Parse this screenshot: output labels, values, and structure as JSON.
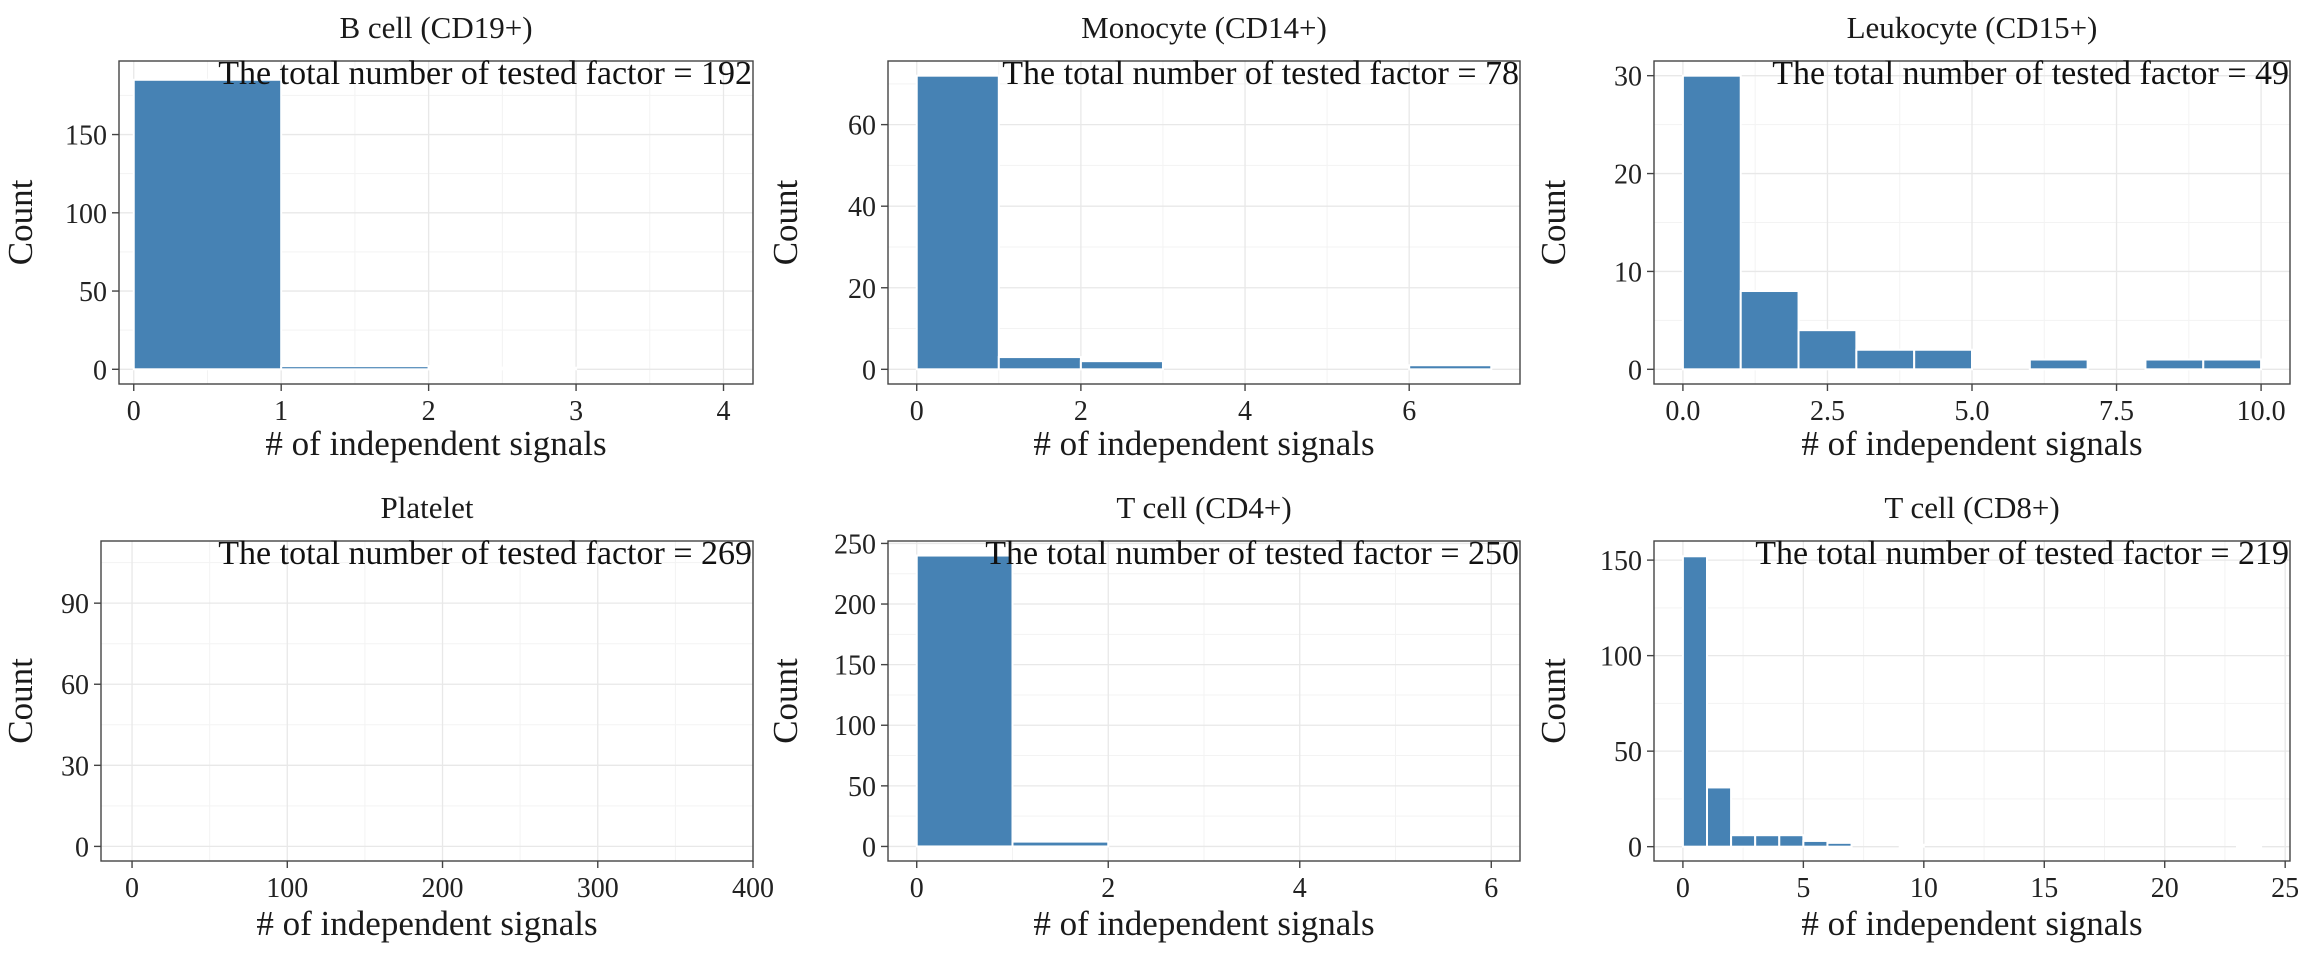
{
  "bar_color": "#4682b4",
  "chart_data": [
    {
      "type": "bar",
      "title": "B cell (CD19+)",
      "xlabel": "# of independent signals",
      "ylabel": "Count",
      "annotation": "The total number of tested factor = 192",
      "xlim": [
        -0.1,
        4.2
      ],
      "ylim": [
        -9.4,
        197
      ],
      "xticks": [
        0,
        1,
        2,
        3,
        4
      ],
      "xtick_labels": [
        "0",
        "1",
        "2",
        "3",
        "4"
      ],
      "yticks": [
        0,
        50,
        100,
        150
      ],
      "ytick_labels": [
        "0",
        "50",
        "100",
        "150"
      ],
      "grid": true,
      "bins": [
        {
          "x0": 0,
          "x1": 1,
          "count": 185
        },
        {
          "x0": 1,
          "x1": 2,
          "count": 2
        },
        {
          "x0": 2,
          "x1": 3,
          "count": 1
        },
        {
          "x0": 3,
          "x1": 4,
          "count": 0
        }
      ]
    },
    {
      "type": "bar",
      "title": "Monocyte (CD14+)",
      "xlabel": "# of independent signals",
      "ylabel": "Count",
      "annotation": "The total number of tested factor = 78",
      "xlim": [
        -0.35,
        7.35
      ],
      "ylim": [
        -3.6,
        75.6
      ],
      "xticks": [
        0,
        2,
        4,
        6
      ],
      "xtick_labels": [
        "0",
        "2",
        "4",
        "6"
      ],
      "yticks": [
        0,
        20,
        40,
        60
      ],
      "ytick_labels": [
        "0",
        "20",
        "40",
        "60"
      ],
      "grid": true,
      "bins": [
        {
          "x0": 0,
          "x1": 1,
          "count": 72
        },
        {
          "x0": 1,
          "x1": 2,
          "count": 3
        },
        {
          "x0": 2,
          "x1": 3,
          "count": 2
        },
        {
          "x0": 6,
          "x1": 7,
          "count": 1
        }
      ]
    },
    {
      "type": "bar",
      "title": "Leukocyte (CD15+)",
      "xlabel": "# of independent signals",
      "ylabel": "Count",
      "annotation": "The total number of tested factor = 49",
      "xlim": [
        -0.5,
        10.5
      ],
      "ylim": [
        -1.5,
        31.5
      ],
      "xticks": [
        0,
        2.5,
        5,
        7.5,
        10
      ],
      "xtick_labels": [
        "0.0",
        "2.5",
        "5.0",
        "7.5",
        "10.0"
      ],
      "yticks": [
        0,
        10,
        20,
        30
      ],
      "ytick_labels": [
        "0",
        "10",
        "20",
        "30"
      ],
      "grid": true,
      "bins": [
        {
          "x0": 0,
          "x1": 1,
          "count": 30
        },
        {
          "x0": 1,
          "x1": 2,
          "count": 8
        },
        {
          "x0": 2,
          "x1": 3,
          "count": 4
        },
        {
          "x0": 3,
          "x1": 4,
          "count": 2
        },
        {
          "x0": 4,
          "x1": 5,
          "count": 2
        },
        {
          "x0": 6,
          "x1": 7,
          "count": 1
        },
        {
          "x0": 8,
          "x1": 9,
          "count": 1
        },
        {
          "x0": 9,
          "x1": 10,
          "count": 1
        }
      ]
    },
    {
      "type": "bar",
      "title": "Platelet",
      "xlabel": "# of independent signals",
      "ylabel": "Count",
      "annotation": "The total number of tested factor = 269",
      "xlim": [
        -20,
        400
      ],
      "ylim": [
        -5.4,
        113
      ],
      "xticks": [
        0,
        100,
        200,
        300,
        400
      ],
      "xtick_labels": [
        "0",
        "100",
        "200",
        "300",
        "400"
      ],
      "yticks": [
        0,
        30,
        60,
        90
      ],
      "ytick_labels": [
        "0",
        "30",
        "60",
        "90"
      ],
      "grid": true,
      "bins": [
        {
          "x0": 0,
          "x1": 4,
          "count": 0
        }
      ]
    },
    {
      "type": "bar",
      "title": "T cell (CD4+)",
      "xlabel": "# of independent signals",
      "ylabel": "Count",
      "annotation": "The total number of tested factor = 250",
      "xlim": [
        -0.3,
        6.3
      ],
      "ylim": [
        -12,
        252
      ],
      "xticks": [
        0,
        2,
        4,
        6
      ],
      "xtick_labels": [
        "0",
        "2",
        "4",
        "6"
      ],
      "yticks": [
        0,
        50,
        100,
        150,
        200,
        250
      ],
      "ytick_labels": [
        "0",
        "50",
        "100",
        "150",
        "200",
        "250"
      ],
      "grid": true,
      "bins": [
        {
          "x0": 0,
          "x1": 1,
          "count": 240
        },
        {
          "x0": 1,
          "x1": 2,
          "count": 4
        }
      ]
    },
    {
      "type": "bar",
      "title": "T cell (CD8+)",
      "xlabel": "# of independent signals",
      "ylabel": "Count",
      "annotation": "The total number of tested factor = 219",
      "xlim": [
        -1.2,
        25.2
      ],
      "ylim": [
        -7.5,
        160
      ],
      "xticks": [
        0,
        5,
        10,
        15,
        20,
        25
      ],
      "xtick_labels": [
        "0",
        "5",
        "10",
        "15",
        "20",
        "25"
      ],
      "yticks": [
        0,
        50,
        100,
        150
      ],
      "ytick_labels": [
        "0",
        "50",
        "100",
        "150"
      ],
      "grid": true,
      "bins": [
        {
          "x0": 0,
          "x1": 1,
          "count": 152
        },
        {
          "x0": 1,
          "x1": 2,
          "count": 31
        },
        {
          "x0": 2,
          "x1": 3,
          "count": 6
        },
        {
          "x0": 3,
          "x1": 4,
          "count": 6
        },
        {
          "x0": 4,
          "x1": 5,
          "count": 6
        },
        {
          "x0": 5,
          "x1": 6,
          "count": 3
        },
        {
          "x0": 6,
          "x1": 7,
          "count": 2
        },
        {
          "x0": 9,
          "x1": 10,
          "count": 1
        },
        {
          "x0": 23,
          "x1": 24,
          "count": 1
        }
      ]
    }
  ]
}
